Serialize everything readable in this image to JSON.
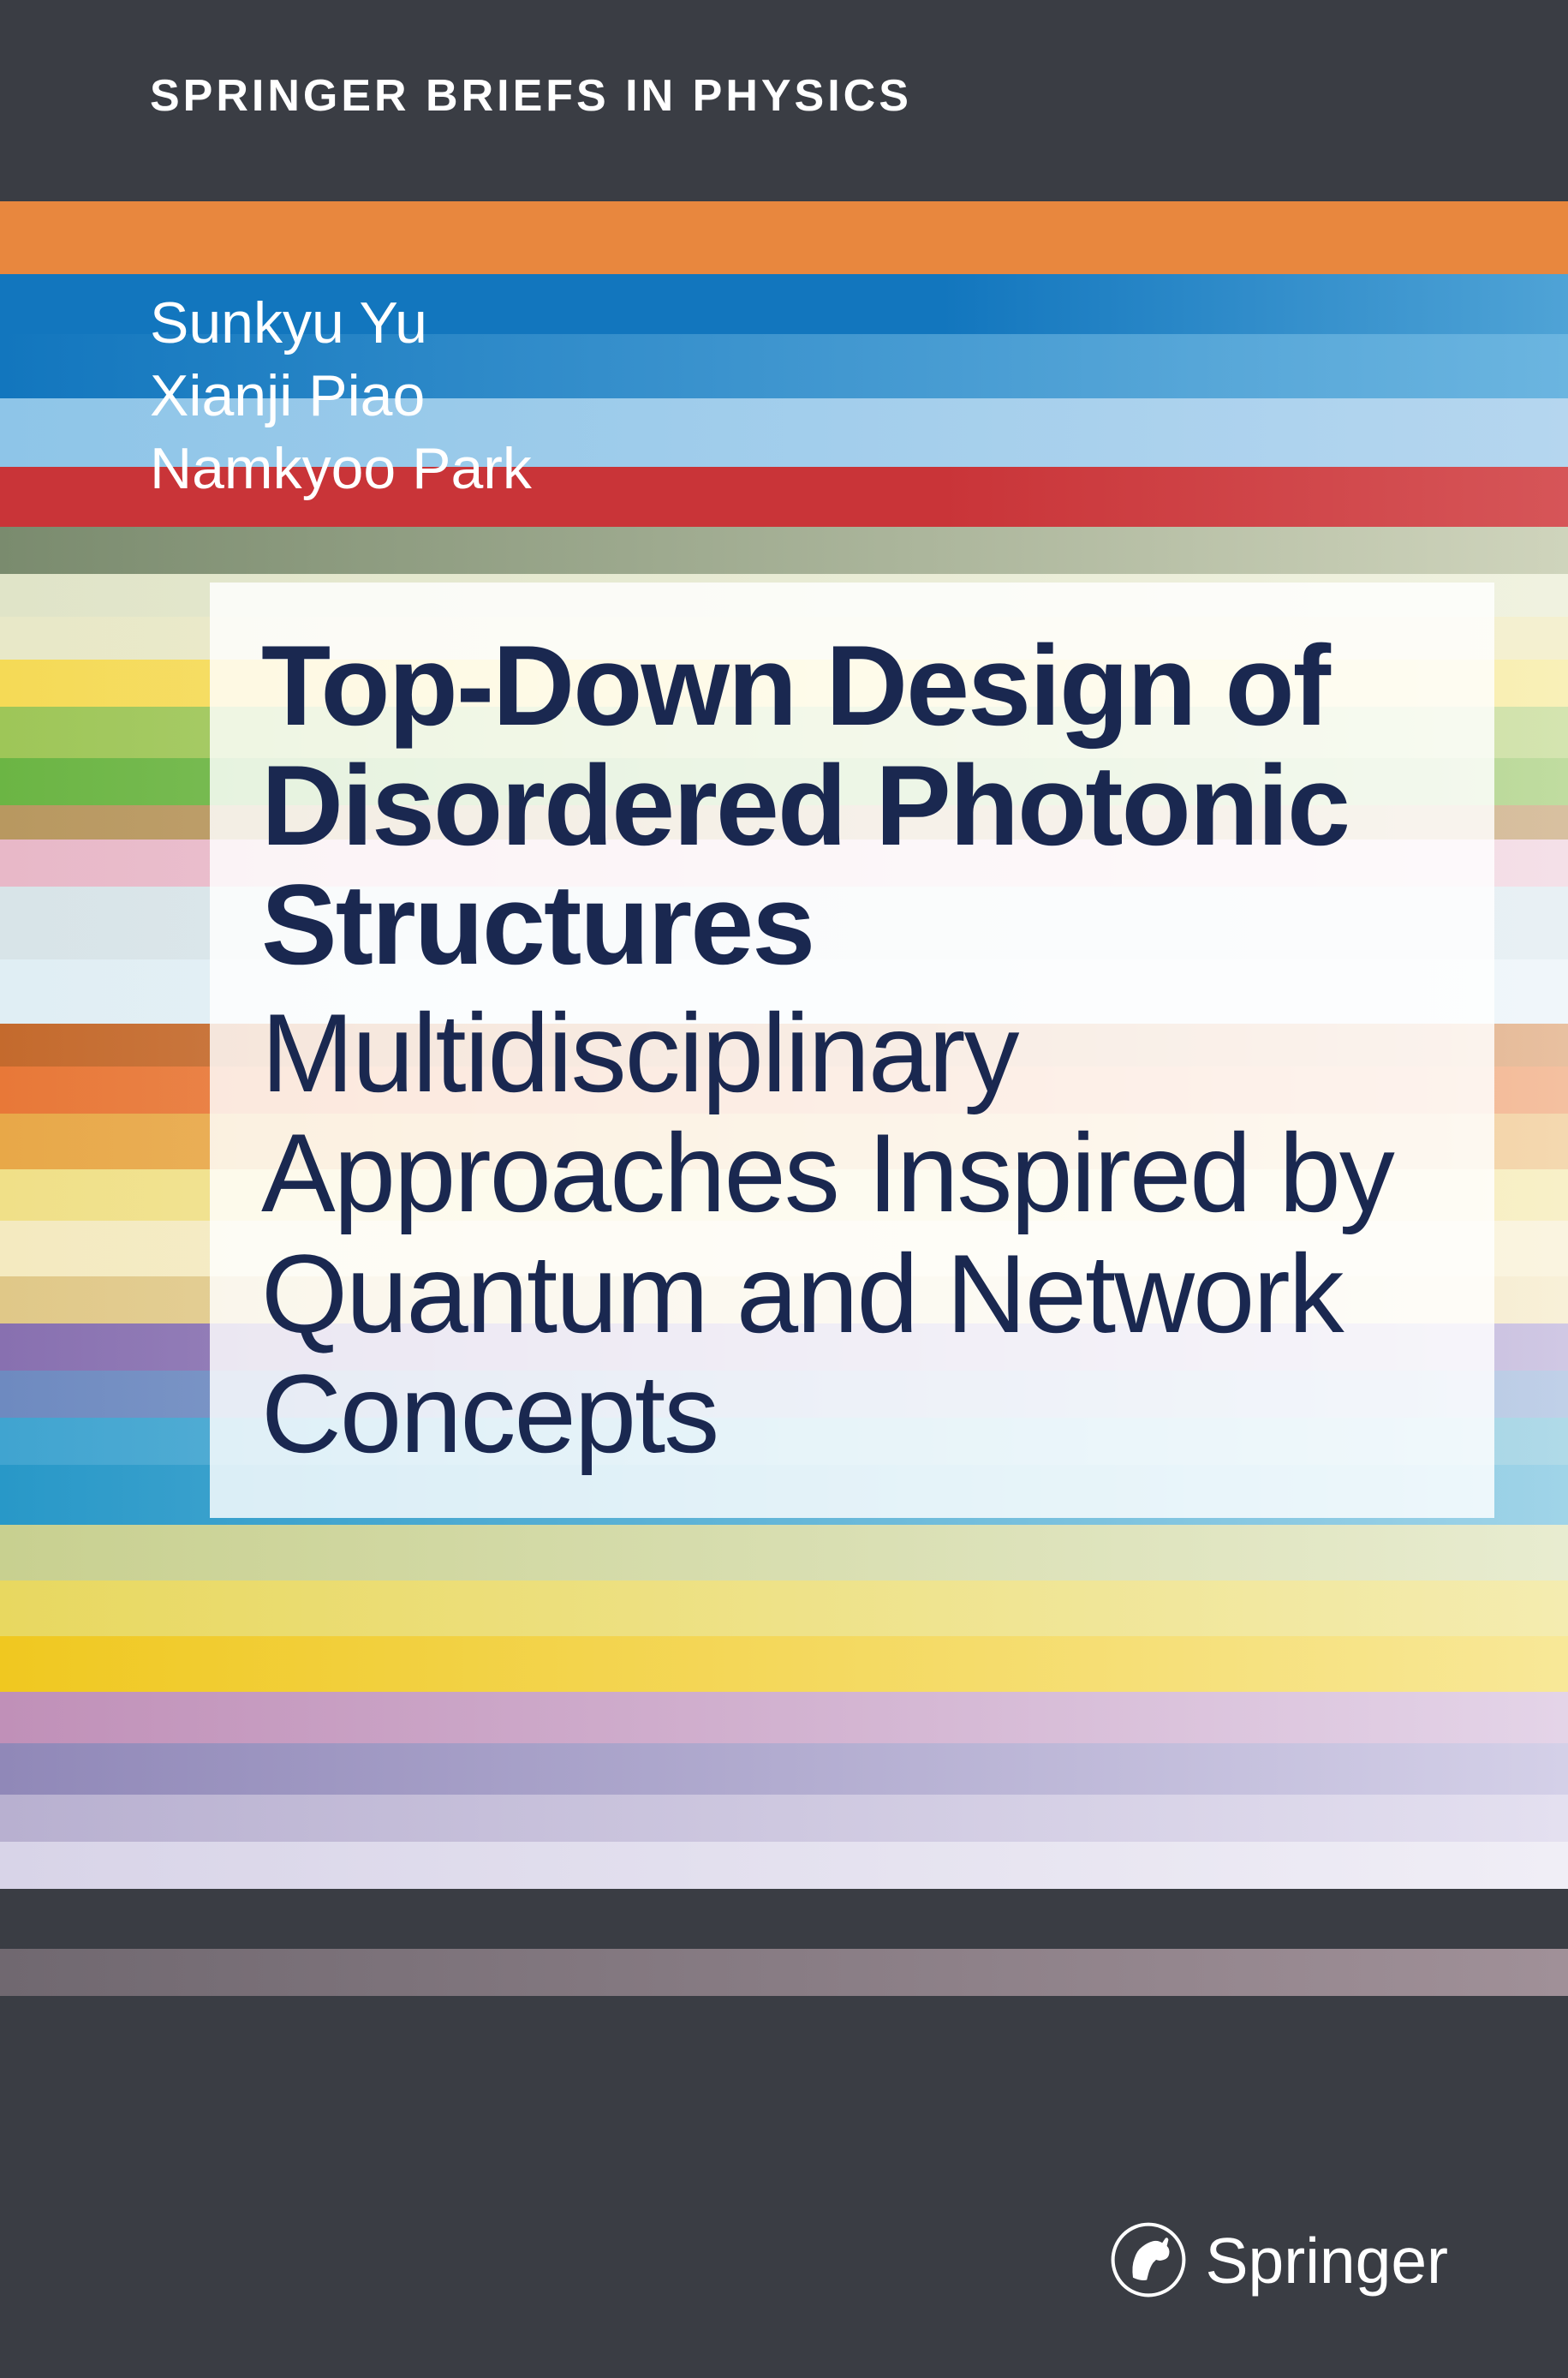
{
  "series_name": "SPRINGER BRIEFS IN PHYSICS",
  "authors": [
    "Sunkyu Yu",
    "Xianji Piao",
    "Namkyoo Park"
  ],
  "title": "Top-Down Design of Disordered Photonic Structures",
  "subtitle": "Multidisciplinary Approaches Inspired by Quantum and Network Concepts",
  "publisher": "Springer",
  "colors": {
    "background": "#3a3d44",
    "text_white": "#ffffff",
    "title_navy": "#1a2850",
    "title_overlay": "rgba(255,255,255,0.82)"
  },
  "stripes": [
    {
      "height": 85,
      "color": "#e8873e"
    },
    {
      "height": 70,
      "gradient": "linear-gradient(to right, #1276be 0%, #1276be 60%, #4fa3d6 100%)"
    },
    {
      "height": 75,
      "gradient": "linear-gradient(to right, #1276be 0%, #6bb5e0 100%)"
    },
    {
      "height": 80,
      "gradient": "linear-gradient(to right, #8ec5e8 0%, #b5d6ef 100%)"
    },
    {
      "height": 70,
      "gradient": "linear-gradient(to right, #c93438 0%, #c93438 60%, #d65558 100%)"
    },
    {
      "height": 55,
      "gradient": "linear-gradient(to right, #7a8b6e 0%, #cfd4bc 100%)"
    },
    {
      "height": 50,
      "gradient": "linear-gradient(to right, #e0e4c8 0%, #f0f2e0 100%)"
    },
    {
      "height": 50,
      "gradient": "linear-gradient(to right, #e8e8c8 0%, #f4f0d0 100%)"
    },
    {
      "height": 55,
      "gradient": "linear-gradient(to right, #f5da56 0%, #f9f0b8 100%)"
    },
    {
      "height": 60,
      "gradient": "linear-gradient(to right, #9ec658 0%, #d4e4b0 100%)"
    },
    {
      "height": 55,
      "gradient": "linear-gradient(to right, #6bb544 0%, #c0dca0 100%)"
    },
    {
      "height": 40,
      "gradient": "linear-gradient(to right, #b89860 0%, #d8c0a0 100%)"
    },
    {
      "height": 55,
      "gradient": "linear-gradient(to right, #e8b8c8 0%, #f4e0e8 100%)"
    },
    {
      "height": 85,
      "gradient": "linear-gradient(to right, #d8e4e8 0%, #e8f0f4 100%)"
    },
    {
      "height": 75,
      "gradient": "linear-gradient(to right, #e0eef4 0%, #f0f6fa 100%)"
    },
    {
      "height": 50,
      "gradient": "linear-gradient(to right, #c46a2d 0%, #e8c0a0 100%)"
    },
    {
      "height": 55,
      "gradient": "linear-gradient(to right, #e87838 0%, #f4c0a0 100%)"
    },
    {
      "height": 65,
      "gradient": "linear-gradient(to right, #e8a848 0%, #f4d8b0 100%)"
    },
    {
      "height": 60,
      "gradient": "linear-gradient(to right, #f0e088 0%, #f8f0c8 100%)"
    },
    {
      "height": 65,
      "gradient": "linear-gradient(to right, #f4eac0 0%, #faf4e0 100%)"
    },
    {
      "height": 55,
      "gradient": "linear-gradient(to right, #e0c888 0%, #f8f0d8 100%)"
    },
    {
      "height": 55,
      "gradient": "linear-gradient(to right, #8870b0 0%, #d0c8e4 100%)"
    },
    {
      "height": 55,
      "gradient": "linear-gradient(to right, #6e8ac0 0%, #c0d0e8 100%)"
    },
    {
      "height": 55,
      "gradient": "linear-gradient(to right, #40a4d0 0%, #b0dae8 100%)"
    },
    {
      "height": 70,
      "gradient": "linear-gradient(to right, #2898c8 0%, #a0d4e8 100%)"
    },
    {
      "height": 65,
      "gradient": "linear-gradient(to right, #c8d090 0%, #e8ecd0 100%)"
    },
    {
      "height": 65,
      "gradient": "linear-gradient(to right, #e8d860 0%, #f4ecb0 100%)"
    },
    {
      "height": 65,
      "gradient": "linear-gradient(to right, #f0c820 0%, #f8e898 100%)"
    },
    {
      "height": 60,
      "gradient": "linear-gradient(to right, #c090b8 0%, #e4d4e8 100%)"
    },
    {
      "height": 60,
      "gradient": "linear-gradient(to right, #9088b8 0%, #d4d0e8 100%)"
    },
    {
      "height": 55,
      "gradient": "linear-gradient(to right, #b8b0d0 0%, #e4e0f0 100%)"
    },
    {
      "height": 55,
      "gradient": "linear-gradient(to right, #d8d4e8 0%, #f0eef6 100%)"
    },
    {
      "height": 70,
      "color": "#3a3d44"
    },
    {
      "height": 55,
      "gradient": "linear-gradient(to right, #706870 0%, #a09098 100%)"
    },
    {
      "height": 60,
      "color": "#3a3d44"
    }
  ]
}
